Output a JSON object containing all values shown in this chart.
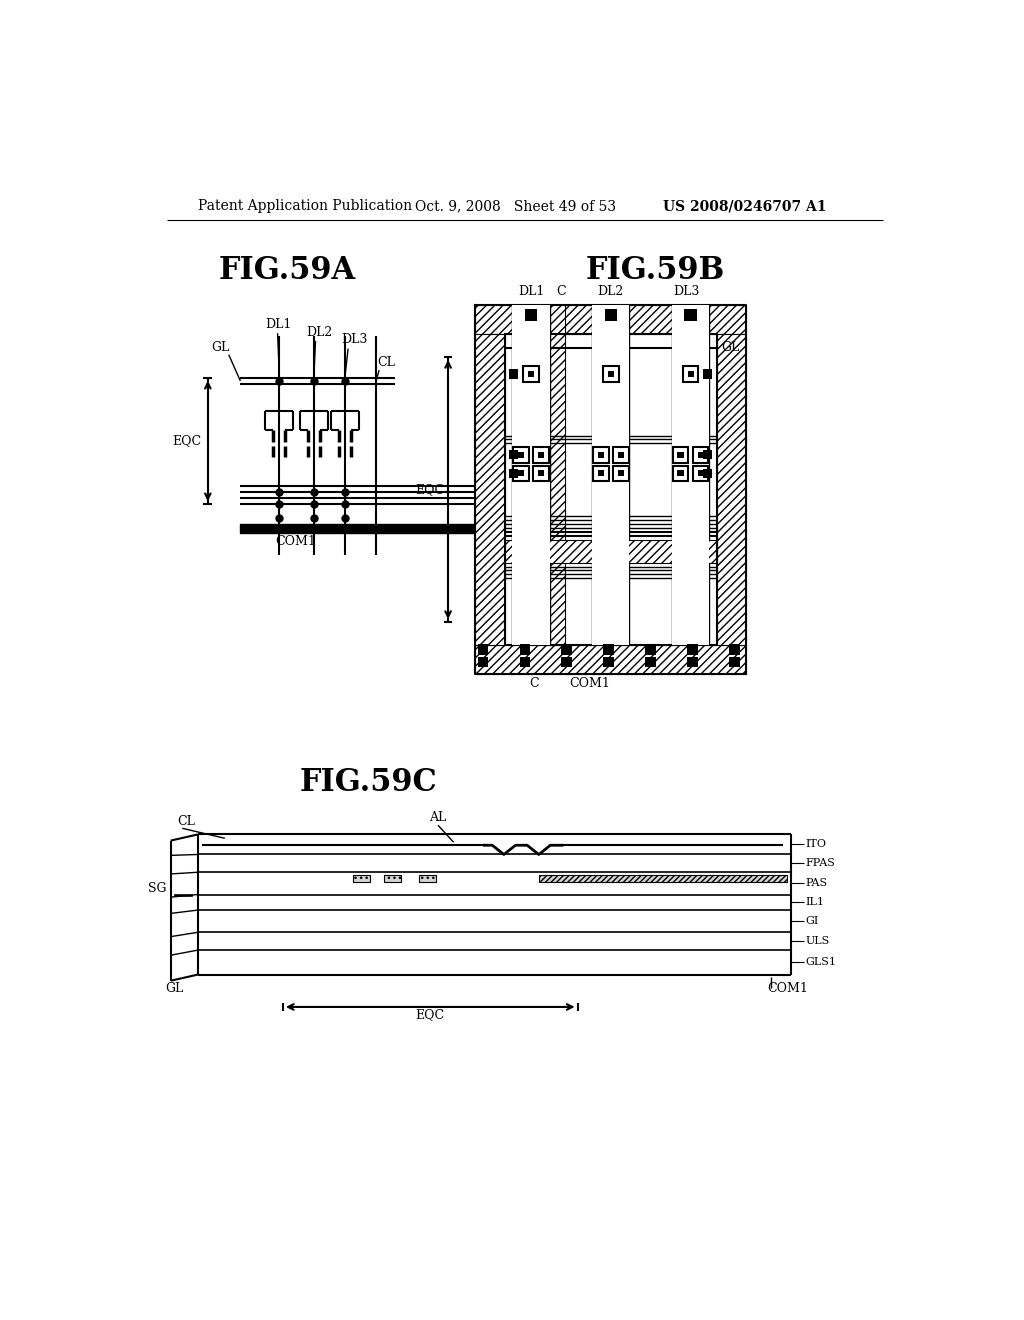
{
  "header_left": "Patent Application Publication",
  "header_mid": "Oct. 9, 2008   Sheet 49 of 53",
  "header_right": "US 2008/0246707 A1",
  "fig59a_title": "FIG.59A",
  "fig59b_title": "FIG.59B",
  "fig59c_title": "FIG.59C",
  "bg_color": "#ffffff"
}
